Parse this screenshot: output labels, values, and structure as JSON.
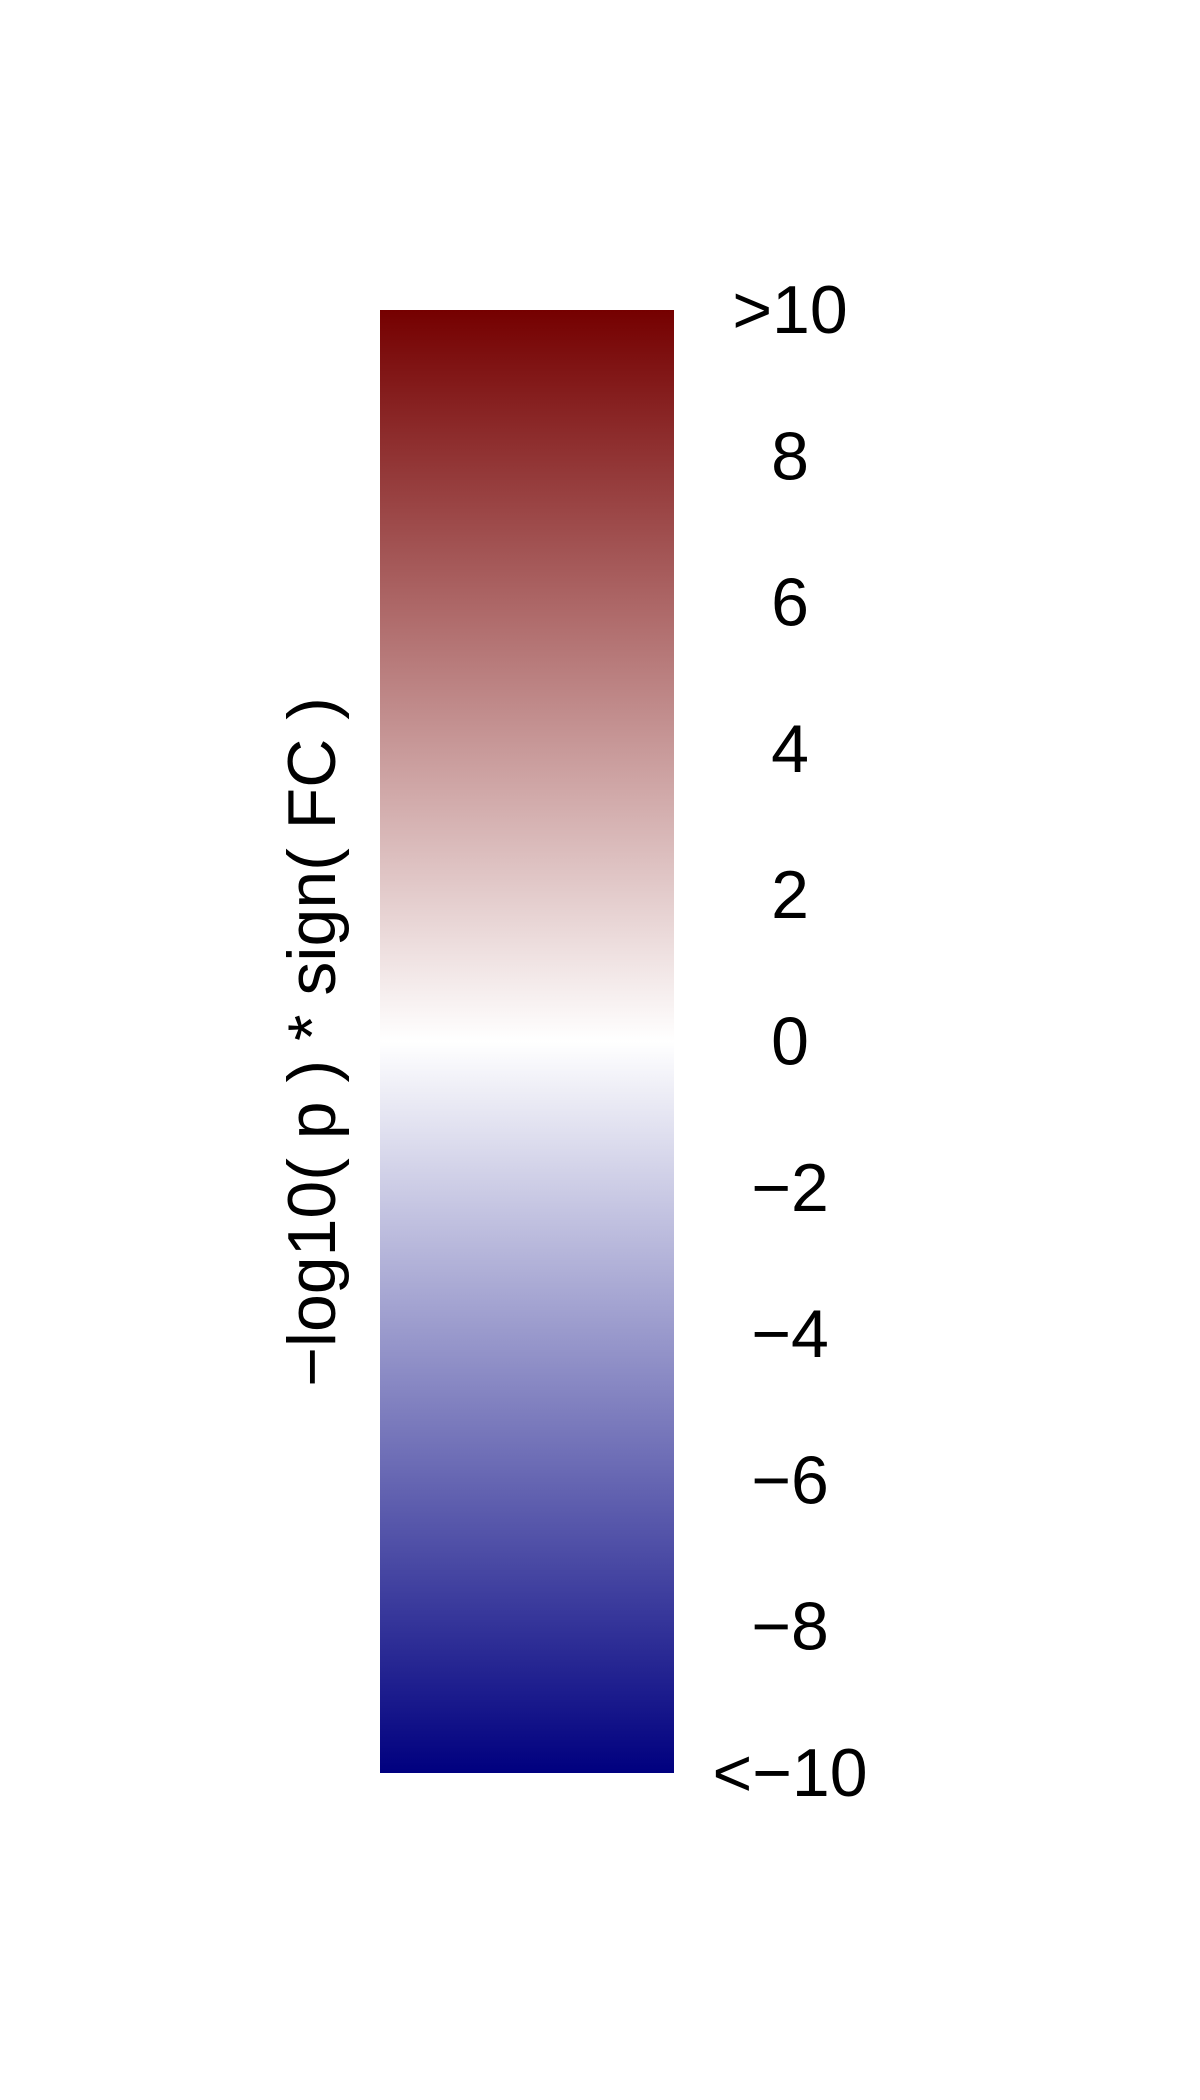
{
  "chart_data": {
    "type": "heatmap",
    "subtype": "colorbar",
    "orientation": "vertical",
    "title": "",
    "ylabel": "−log10( p ) * sign( FC )",
    "range": [
      -10,
      10
    ],
    "ticks": [
      {
        "value": 10,
        "label": ">10"
      },
      {
        "value": 8,
        "label": "8"
      },
      {
        "value": 6,
        "label": "6"
      },
      {
        "value": 4,
        "label": "4"
      },
      {
        "value": 2,
        "label": "2"
      },
      {
        "value": 0,
        "label": "0"
      },
      {
        "value": -2,
        "label": "−2"
      },
      {
        "value": -4,
        "label": "−4"
      },
      {
        "value": -6,
        "label": "−6"
      },
      {
        "value": -8,
        "label": "−8"
      },
      {
        "value": -10,
        "label": "<−10"
      }
    ],
    "colormap": {
      "high": "#750000",
      "mid": "#ffffff",
      "low": "#00007f"
    }
  }
}
